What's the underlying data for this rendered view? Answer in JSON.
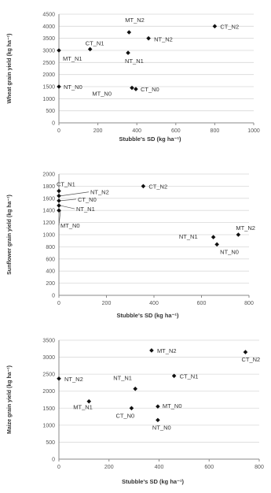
{
  "chart_data": [
    {
      "type": "scatter",
      "xlabel": "Stubble's SD (kg ha⁻¹)",
      "ylabel": "Wheat grain yield (kg ha⁻¹)",
      "xlim": [
        0,
        1000
      ],
      "ylim": [
        0,
        4500
      ],
      "xticks": [
        0,
        200,
        400,
        600,
        800,
        1000
      ],
      "yticks": [
        0,
        500,
        1000,
        1500,
        2000,
        2500,
        3000,
        3500,
        4000,
        4500
      ],
      "grid": true,
      "points": [
        {
          "label": "MT_N2",
          "x": 360,
          "y": 3750
        },
        {
          "label": "CT_N2",
          "x": 800,
          "y": 4000
        },
        {
          "label": "NT_N2",
          "x": 460,
          "y": 3500
        },
        {
          "label": "CT_N1",
          "x": 160,
          "y": 3050
        },
        {
          "label": "MT_N1",
          "x": 0,
          "y": 3000
        },
        {
          "label": "NT_N1",
          "x": 355,
          "y": 2900
        },
        {
          "label": "NT_N0",
          "x": 0,
          "y": 1500
        },
        {
          "label": "MT_N0",
          "x": 375,
          "y": 1450
        },
        {
          "label": "CT_N0",
          "x": 395,
          "y": 1400
        }
      ]
    },
    {
      "type": "scatter",
      "xlabel": "Stubble's SD (kg ha⁻¹)",
      "ylabel": "Sunflower grain yield (kg ha⁻¹)",
      "xlim": [
        0,
        800
      ],
      "ylim": [
        0,
        2000
      ],
      "xticks": [
        0,
        200,
        400,
        600,
        800
      ],
      "yticks": [
        0,
        200,
        400,
        600,
        800,
        1000,
        1200,
        1400,
        1600,
        1800,
        2000
      ],
      "grid": true,
      "points": [
        {
          "label": "CT_N1",
          "x": 0,
          "y": 1720
        },
        {
          "label": "CT_N2",
          "x": 355,
          "y": 1800
        },
        {
          "label": "NT_N2",
          "x": 0,
          "y": 1640
        },
        {
          "label": "CT_N0",
          "x": 0,
          "y": 1560
        },
        {
          "label": "NT_N1",
          "x": 0,
          "y": 1480
        },
        {
          "label": "MT_N0",
          "x": 0,
          "y": 1400
        },
        {
          "label": "MT_N2",
          "x": 755,
          "y": 1000
        },
        {
          "label": "NT_N1",
          "x": 650,
          "y": 960
        },
        {
          "label": "NT_N0",
          "x": 665,
          "y": 840
        }
      ]
    },
    {
      "type": "scatter",
      "xlabel": "Stubble's SD (kg ha⁻¹)",
      "ylabel": "Maize grain yield (kg ha⁻¹)",
      "xlim": [
        0,
        800
      ],
      "ylim": [
        0,
        3500
      ],
      "xticks": [
        0,
        200,
        400,
        600,
        800
      ],
      "yticks": [
        0,
        500,
        1000,
        1500,
        2000,
        2500,
        3000,
        3500
      ],
      "grid": true,
      "points": [
        {
          "label": "MT_N2",
          "x": 370,
          "y": 3200
        },
        {
          "label": "CT_N2",
          "x": 745,
          "y": 3150
        },
        {
          "label": "NT_N2",
          "x": 0,
          "y": 2370
        },
        {
          "label": "CT_N1",
          "x": 460,
          "y": 2450
        },
        {
          "label": "NT_N1",
          "x": 305,
          "y": 2070
        },
        {
          "label": "MT_N1",
          "x": 120,
          "y": 1700
        },
        {
          "label": "MT_N0",
          "x": 395,
          "y": 1550
        },
        {
          "label": "CT_N0",
          "x": 290,
          "y": 1500
        },
        {
          "label": "NT_N0",
          "x": 395,
          "y": 1150
        }
      ]
    }
  ]
}
